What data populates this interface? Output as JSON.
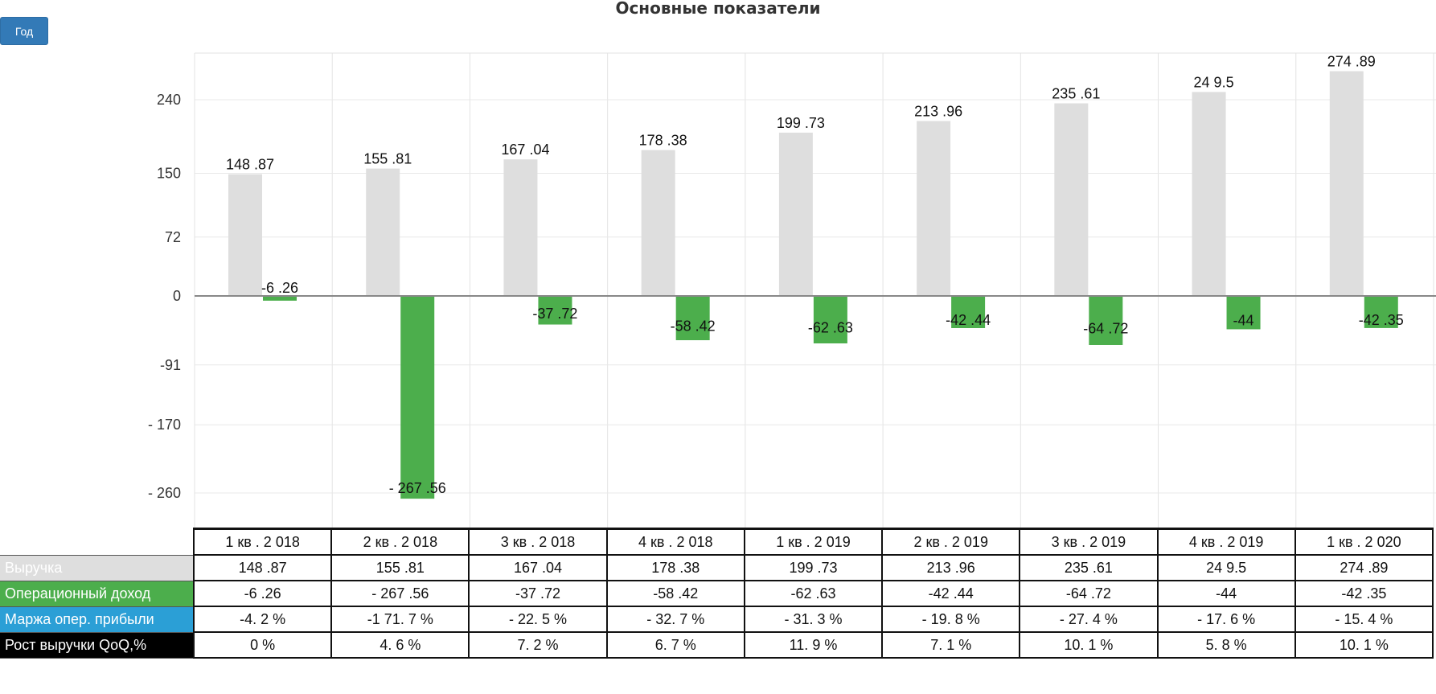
{
  "title": "Основные показатели",
  "year_button": "Год",
  "chart_data": {
    "type": "bar",
    "categories": [
      "1 кв . 2 018",
      "2 кв . 2 018",
      "3 кв . 2 018",
      "4 кв . 2 018",
      "1 кв . 2 019",
      "2 кв . 2 019",
      "3 кв . 2 019",
      "4 кв . 2 019",
      "1 кв . 2 020"
    ],
    "series": [
      {
        "name": "Выручка",
        "color": "#dedede",
        "values": [
          148.87,
          155.81,
          167.04,
          178.38,
          199.73,
          213.96,
          235.61,
          249.5,
          274.89
        ],
        "labels": [
          "148 .87",
          "155 .81",
          "167 .04",
          "178 .38",
          "199 .73",
          "213 .96",
          "235 .61",
          "24 9.5",
          "274 .89"
        ]
      },
      {
        "name": "Операционный доход",
        "color": "#4cae4c",
        "values": [
          -6.26,
          -267.56,
          -37.72,
          -58.42,
          -62.63,
          -42.44,
          -64.72,
          -44,
          -42.35
        ],
        "labels": [
          "-6 .26",
          "- 267 .56",
          "-37 .72",
          "-58 .42",
          "-62 .63",
          "-42 .44",
          "-64 .72",
          "-44",
          "-42 .35"
        ]
      }
    ],
    "y_ticks": [
      {
        "value": 240,
        "label": "240"
      },
      {
        "value": 150,
        "label": "150"
      },
      {
        "value": 72,
        "label": "72"
      },
      {
        "value": 0,
        "label": "0"
      },
      {
        "value": -91,
        "label": "-91"
      },
      {
        "value": -170,
        "label": "- 170"
      },
      {
        "value": -260,
        "label": "- 260"
      }
    ],
    "ylim": [
      -300,
      300
    ],
    "grid": true
  },
  "table": {
    "rows": [
      {
        "label": "Выручка",
        "label_bg": "#dedede",
        "label_color": "#ffffff",
        "values": [
          "148 .87",
          "155 .81",
          "167 .04",
          "178 .38",
          "199 .73",
          "213 .96",
          "235 .61",
          "24 9.5",
          "274 .89"
        ]
      },
      {
        "label": "Операционный доход",
        "label_bg": "#4cae4c",
        "label_color": "#ffffff",
        "values": [
          "-6 .26",
          "- 267 .56",
          "-37 .72",
          "-58 .42",
          "-62 .63",
          "-42 .44",
          "-64 .72",
          "-44",
          "-42 .35"
        ]
      },
      {
        "label": "Маржа опер. прибыли",
        "label_bg": "#2b9fd6",
        "label_color": "#ffffff",
        "values": [
          "-4. 2 %",
          "-1 71. 7 %",
          "- 22. 5 %",
          "- 32. 7 %",
          "- 31. 3 %",
          "- 19. 8 %",
          "- 27. 4 %",
          "- 17. 6 %",
          "- 15. 4 %"
        ]
      },
      {
        "label": "Рост выручки QoQ,%",
        "label_bg": "#000000",
        "label_color": "#ffffff",
        "values": [
          "0 %",
          "4. 6 %",
          "7. 2 %",
          "6. 7 %",
          "11. 9 %",
          "7. 1 %",
          "10. 1 %",
          "5. 8 %",
          "10. 1 %"
        ]
      }
    ]
  }
}
